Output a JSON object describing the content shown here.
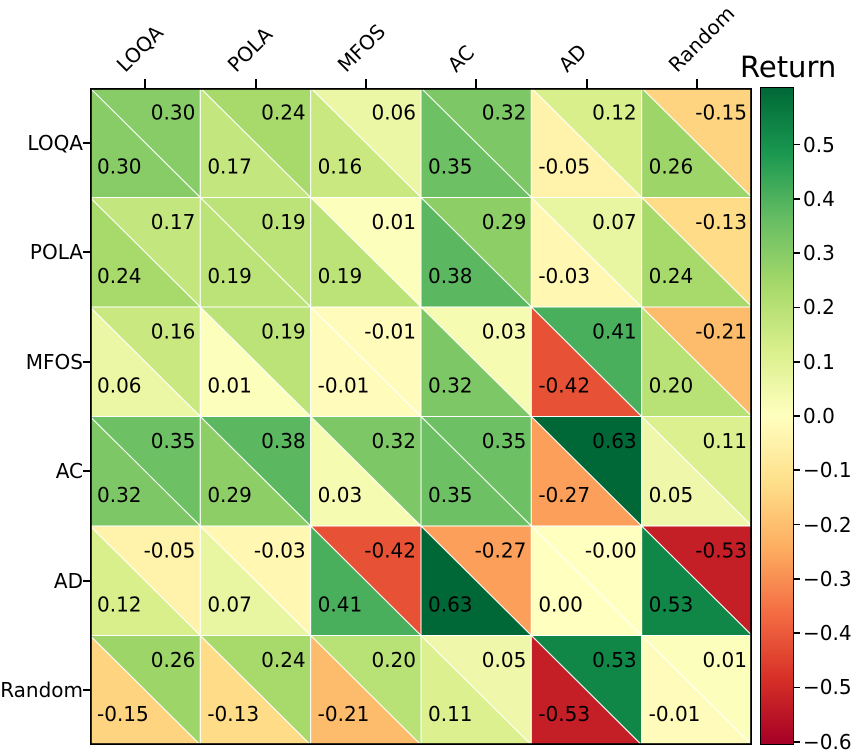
{
  "figure": {
    "title": "Return",
    "colorbar": {
      "tick_labels": [
        "0.5",
        "0.4",
        "0.3",
        "0.2",
        "0.1",
        "0.0",
        "−0.1",
        "−0.2",
        "−0.3",
        "−0.4",
        "−0.5",
        "−0.6"
      ],
      "tick_values": [
        0.5,
        0.4,
        0.3,
        0.2,
        0.1,
        0.0,
        -0.1,
        -0.2,
        -0.3,
        -0.4,
        -0.5,
        -0.6
      ]
    }
  },
  "chart_data": {
    "type": "heatmap",
    "title": "Return",
    "cell_style": "split-diagonal: upper-right triangle and lower-left triangle per cell",
    "rows": [
      "LOQA",
      "POLA",
      "MFOS",
      "AC",
      "AD",
      "Random"
    ],
    "cols": [
      "LOQA",
      "POLA",
      "MFOS",
      "AC",
      "AD",
      "Random"
    ],
    "upper": [
      [
        "0.30",
        "0.24",
        "0.06",
        "0.32",
        "0.12",
        "-0.15"
      ],
      [
        "0.17",
        "0.19",
        "0.01",
        "0.29",
        "0.07",
        "-0.13"
      ],
      [
        "0.16",
        "0.19",
        "-0.01",
        "0.03",
        "0.41",
        "-0.21"
      ],
      [
        "0.35",
        "0.38",
        "0.32",
        "0.35",
        "0.63",
        "0.11"
      ],
      [
        "-0.05",
        "-0.03",
        "-0.42",
        "-0.27",
        "-0.00",
        "-0.53"
      ],
      [
        "0.26",
        "0.24",
        "0.20",
        "0.05",
        "0.53",
        "0.01"
      ]
    ],
    "lower": [
      [
        "0.30",
        "0.17",
        "0.16",
        "0.35",
        "-0.05",
        "0.26"
      ],
      [
        "0.24",
        "0.19",
        "0.19",
        "0.38",
        "-0.03",
        "0.24"
      ],
      [
        "0.06",
        "0.01",
        "-0.01",
        "0.32",
        "-0.42",
        "0.20"
      ],
      [
        "0.32",
        "0.29",
        "0.03",
        "0.35",
        "-0.27",
        "0.05"
      ],
      [
        "0.12",
        "0.07",
        "0.41",
        "0.63",
        "0.00",
        "0.53"
      ],
      [
        "-0.15",
        "-0.13",
        "-0.21",
        "0.11",
        "-0.53",
        "-0.01"
      ]
    ],
    "colormap": {
      "name": "RdYlGn",
      "anchors": [
        "#a50026",
        "#d73027",
        "#f46d43",
        "#fdae61",
        "#fee08b",
        "#ffffbf",
        "#d9ef8b",
        "#a6d96a",
        "#66bd63",
        "#1a9850",
        "#006837"
      ],
      "vmin": -0.606,
      "vmax": 0.606
    },
    "colorbar_label": "Return",
    "legend_position": "right-colorbar",
    "grid": false,
    "axis_text_color": "#000000",
    "cell_edge_color": "#ffffff",
    "spine_color": "#000000"
  }
}
